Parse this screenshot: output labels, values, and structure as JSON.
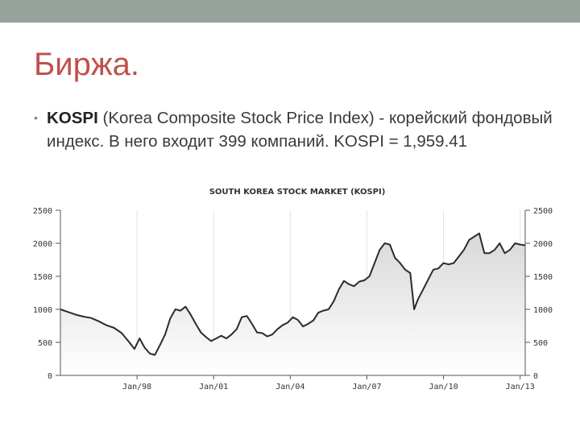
{
  "slide": {
    "title": "Биржа.",
    "bullet": {
      "lead": "KOSPI",
      "text": " (Korea Composite Stock Price Index) - корейский фондовый индекс. В него входит 399 компаний. KOSPI = 1,959.41"
    }
  },
  "colors": {
    "top_bar": "#97a39a",
    "title": "#c0504d",
    "line": "#2b2b2b",
    "area": "#d8d8d8"
  },
  "chart_data": {
    "type": "area",
    "title": "SOUTH KOREA STOCK MARKET (KOSPI)",
    "xlabel": "",
    "ylabel": "",
    "ylim": [
      0,
      2500
    ],
    "yticks": [
      0,
      500,
      1000,
      1500,
      2000,
      2500
    ],
    "xlim": [
      1995.0,
      2013.2
    ],
    "xticks": [
      {
        "label": "Jan/98",
        "x": 1998.0
      },
      {
        "label": "Jan/01",
        "x": 2001.0
      },
      {
        "label": "Jan/04",
        "x": 2004.0
      },
      {
        "label": "Jan/07",
        "x": 2007.0
      },
      {
        "label": "Jan/10",
        "x": 2010.0
      },
      {
        "label": "Jan/13",
        "x": 2013.0
      }
    ],
    "grid": "vertical",
    "series": [
      {
        "x": [
          1995.0,
          1995.3,
          1995.6,
          1995.9,
          1996.2,
          1996.5,
          1996.8,
          1997.1,
          1997.4,
          1997.7,
          1997.9,
          1998.1,
          1998.3,
          1998.5,
          1998.7,
          1998.9,
          1999.1,
          1999.3,
          1999.5,
          1999.7,
          1999.9,
          2000.1,
          2000.3,
          2000.5,
          2000.7,
          2000.9,
          2001.1,
          2001.3,
          2001.5,
          2001.7,
          2001.9,
          2002.1,
          2002.3,
          2002.5,
          2002.7,
          2002.9,
          2003.1,
          2003.3,
          2003.5,
          2003.7,
          2003.9,
          2004.1,
          2004.3,
          2004.5,
          2004.7,
          2004.9,
          2005.1,
          2005.3,
          2005.5,
          2005.7,
          2005.9,
          2006.1,
          2006.3,
          2006.5,
          2006.7,
          2006.9,
          2007.1,
          2007.3,
          2007.5,
          2007.7,
          2007.9,
          2008.1,
          2008.3,
          2008.5,
          2008.7,
          2008.85,
          2009.0,
          2009.2,
          2009.4,
          2009.6,
          2009.8,
          2010.0,
          2010.2,
          2010.4,
          2010.6,
          2010.8,
          2011.0,
          2011.2,
          2011.4,
          2011.6,
          2011.8,
          2012.0,
          2012.2,
          2012.4,
          2012.6,
          2012.8,
          2013.0,
          2013.2
        ],
        "values": [
          1000,
          960,
          920,
          890,
          870,
          820,
          760,
          720,
          640,
          500,
          400,
          560,
          420,
          330,
          310,
          460,
          620,
          860,
          1000,
          980,
          1040,
          920,
          780,
          650,
          580,
          520,
          560,
          600,
          560,
          620,
          700,
          880,
          900,
          780,
          650,
          640,
          590,
          620,
          700,
          760,
          800,
          880,
          840,
          740,
          780,
          830,
          950,
          980,
          1000,
          1120,
          1300,
          1430,
          1380,
          1350,
          1420,
          1440,
          1500,
          1700,
          1900,
          2000,
          1980,
          1780,
          1700,
          1600,
          1550,
          1000,
          1150,
          1300,
          1450,
          1600,
          1620,
          1700,
          1680,
          1700,
          1800,
          1900,
          2050,
          2100,
          2150,
          1850,
          1850,
          1900,
          2000,
          1850,
          1900,
          2000,
          1980,
          1970
        ]
      }
    ]
  }
}
